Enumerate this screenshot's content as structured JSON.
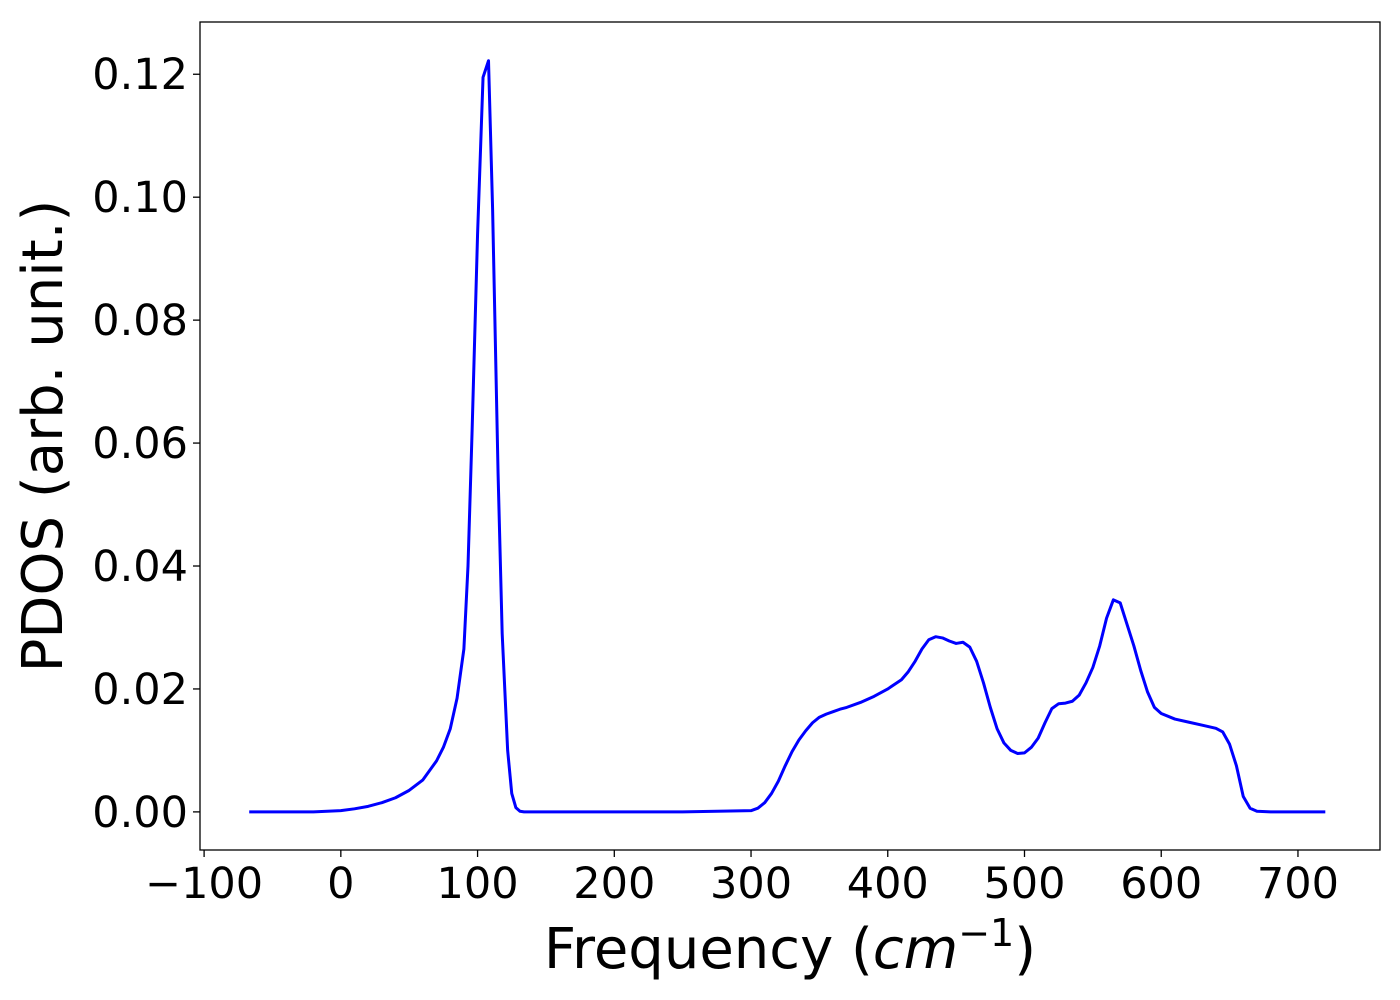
{
  "chart_data": {
    "type": "line",
    "title": "",
    "xlabel_text": "Frequency (",
    "xlabel_math": "cm",
    "xlabel_sup": "−1",
    "xlabel_close": ")",
    "ylabel": "PDOS (arb. unit.)",
    "xlim": [
      -103,
      760
    ],
    "ylim": [
      -0.0062,
      0.1285
    ],
    "xticks": [
      -100,
      0,
      100,
      200,
      300,
      400,
      500,
      600,
      700
    ],
    "xtick_labels": [
      "−100",
      "0",
      "100",
      "200",
      "300",
      "400",
      "500",
      "600",
      "700"
    ],
    "yticks": [
      0.0,
      0.02,
      0.04,
      0.06,
      0.08,
      0.1,
      0.12
    ],
    "ytick_labels": [
      "0.00",
      "0.02",
      "0.04",
      "0.06",
      "0.08",
      "0.10",
      "0.12"
    ],
    "grid": false,
    "legend": "none",
    "series": [
      {
        "color": "#0000ff",
        "x": [
          -67,
          -40,
          -20,
          0,
          10,
          20,
          30,
          40,
          50,
          60,
          70,
          75,
          80,
          85,
          90,
          93,
          96,
          100,
          104,
          108,
          111,
          115,
          118,
          122,
          125,
          128,
          131,
          134,
          138,
          142,
          150,
          200,
          250,
          300,
          305,
          310,
          315,
          320,
          325,
          330,
          335,
          340,
          345,
          350,
          355,
          360,
          365,
          370,
          380,
          390,
          400,
          410,
          415,
          420,
          425,
          430,
          435,
          440,
          445,
          450,
          455,
          460,
          465,
          470,
          475,
          480,
          485,
          490,
          495,
          500,
          505,
          510,
          515,
          520,
          525,
          530,
          535,
          540,
          545,
          550,
          555,
          560,
          565,
          570,
          575,
          580,
          585,
          590,
          595,
          600,
          610,
          620,
          630,
          640,
          645,
          650,
          655,
          660,
          665,
          670,
          680,
          700,
          720
        ],
        "y": [
          0.0,
          0.0,
          0.0,
          0.0002,
          0.0005,
          0.0009,
          0.0015,
          0.0023,
          0.0035,
          0.0052,
          0.0083,
          0.0105,
          0.0135,
          0.0185,
          0.0265,
          0.04,
          0.062,
          0.094,
          0.1195,
          0.1222,
          0.098,
          0.055,
          0.029,
          0.01,
          0.003,
          0.0007,
          0.0001,
          0.0,
          0.0,
          0.0,
          0.0,
          0.0,
          0.0,
          0.0002,
          0.0006,
          0.0015,
          0.003,
          0.005,
          0.0075,
          0.0098,
          0.0117,
          0.0132,
          0.0145,
          0.0154,
          0.0159,
          0.0163,
          0.0167,
          0.017,
          0.0178,
          0.0188,
          0.02,
          0.0215,
          0.0228,
          0.0245,
          0.0265,
          0.028,
          0.0285,
          0.0283,
          0.0278,
          0.0274,
          0.0276,
          0.0268,
          0.0245,
          0.021,
          0.017,
          0.0135,
          0.0112,
          0.01,
          0.0095,
          0.0096,
          0.0105,
          0.012,
          0.0145,
          0.0168,
          0.0176,
          0.0177,
          0.018,
          0.019,
          0.021,
          0.0235,
          0.027,
          0.0315,
          0.0345,
          0.034,
          0.0305,
          0.027,
          0.023,
          0.0195,
          0.017,
          0.016,
          0.0151,
          0.0146,
          0.0141,
          0.0136,
          0.013,
          0.011,
          0.0075,
          0.0025,
          0.0006,
          0.0001,
          0.0,
          0.0,
          0.0
        ]
      }
    ]
  }
}
